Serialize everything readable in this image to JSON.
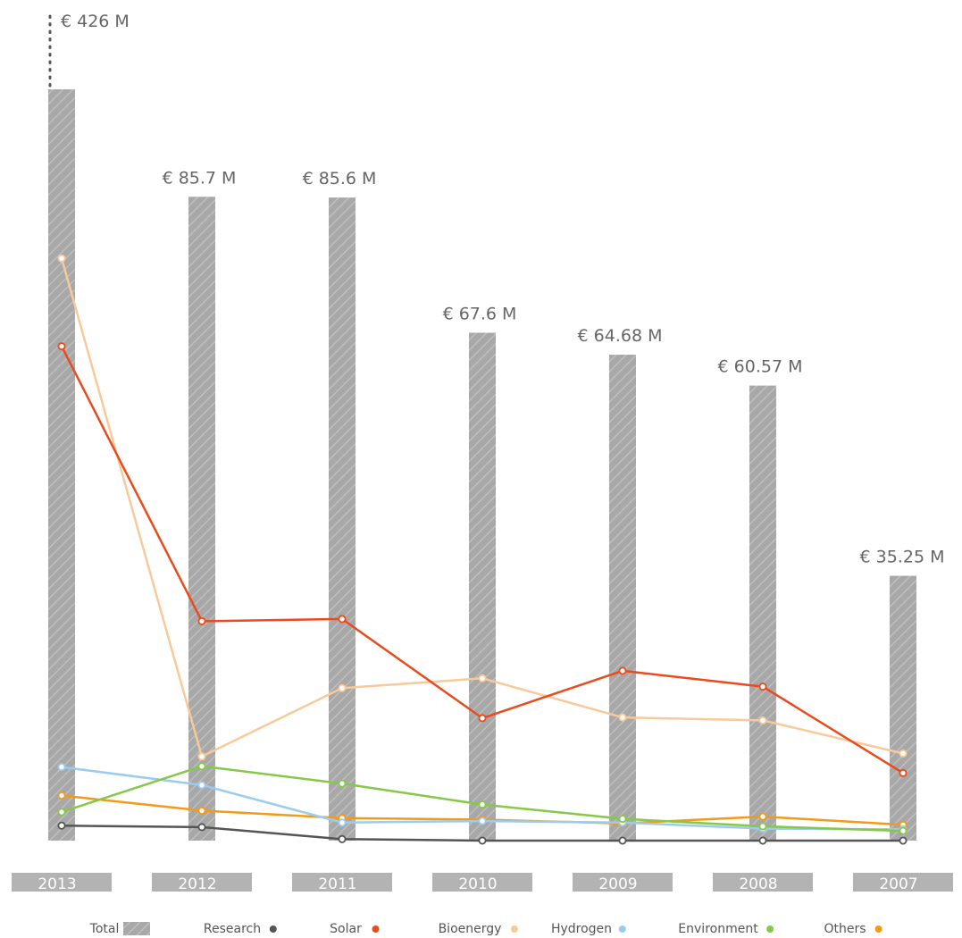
{
  "chart_data": {
    "type": "bar",
    "title": "",
    "xlabel": "",
    "ylabel": "",
    "ylim": [
      0,
      100
    ],
    "categories": [
      "2013",
      "2012",
      "2011",
      "2010",
      "2009",
      "2008",
      "2007"
    ],
    "totals": {
      "name": "Total",
      "values": [
        426,
        85.7,
        85.6,
        67.6,
        64.68,
        60.57,
        35.25
      ],
      "labels": [
        "€ 426 M",
        "€ 85.7 M",
        "€ 85.6 M",
        "€ 67.6 M",
        "€ 64.68 M",
        "€ 60.57 M",
        "€ 35.25 M"
      ],
      "broken_axis_first_bar": true
    },
    "series": [
      {
        "name": "Research",
        "values": [
          2.0,
          1.8,
          0.2,
          0.0,
          0.0,
          0.0,
          0.0
        ]
      },
      {
        "name": "Solar",
        "values": [
          65.8,
          29.2,
          29.5,
          16.3,
          22.6,
          20.5,
          9.0
        ]
      },
      {
        "name": "Bioenergy",
        "values": [
          77.5,
          11.2,
          20.3,
          21.6,
          16.4,
          16.0,
          11.6
        ]
      },
      {
        "name": "Hydrogen",
        "values": [
          9.8,
          7.4,
          2.4,
          2.6,
          2.4,
          1.6,
          1.5
        ]
      },
      {
        "name": "Environment",
        "values": [
          3.8,
          9.9,
          7.6,
          4.8,
          2.9,
          1.9,
          1.3
        ]
      },
      {
        "name": "Others",
        "values": [
          6.0,
          4.0,
          3.0,
          2.8,
          2.3,
          3.2,
          2.1
        ]
      }
    ],
    "grid": false,
    "legend_position": "bottom"
  },
  "colors": {
    "Total": "#a8a8a8",
    "Research": "#555555",
    "Solar": "#ea4b1e",
    "Bioenergy": "#f8c99a",
    "Hydrogen": "#9ccbf2",
    "Environment": "#86c84a",
    "Others": "#f29a1a",
    "yearBox": "#b3b3b3"
  },
  "legend": [
    "Total",
    "Research",
    "Solar",
    "Bioenergy",
    "Hydrogen",
    "Environment",
    "Others"
  ]
}
